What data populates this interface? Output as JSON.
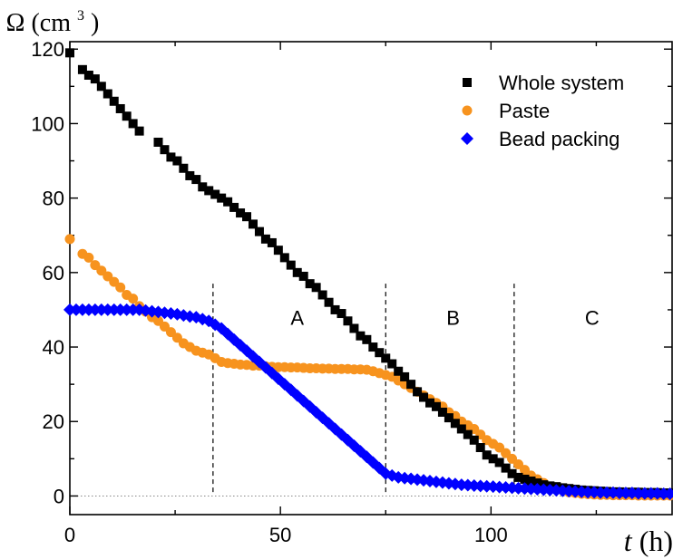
{
  "chart_data": {
    "type": "scatter",
    "title": "",
    "ylabel": {
      "symbol": "Ω",
      "unit": "cm",
      "superscript": "3"
    },
    "xlabel": {
      "symbol": "t",
      "unit": "h"
    },
    "xlim": [
      0,
      143
    ],
    "ylim": [
      -5,
      122
    ],
    "xticks": [
      0,
      50,
      100
    ],
    "yticks": [
      0,
      20,
      40,
      60,
      80,
      100,
      120
    ],
    "grid": false,
    "legend_position": "top-right",
    "zero_line": {
      "y": 0,
      "style": "dotted"
    },
    "region_lines": [
      34,
      75,
      105.5
    ],
    "regions": [
      {
        "label": "A",
        "x": 54
      },
      {
        "label": "B",
        "x": 91
      },
      {
        "label": "C",
        "x": 124
      }
    ],
    "series": [
      {
        "name": "Whole system",
        "marker": "square",
        "color": "#000000",
        "x": [
          0,
          3,
          4.5,
          6,
          7.5,
          9,
          10.5,
          12,
          13.5,
          15,
          16.5,
          21,
          22.5,
          24,
          25.5,
          27,
          28.5,
          30,
          31.5,
          33,
          34.5,
          36,
          37.5,
          39,
          40.5,
          42,
          43.5,
          45,
          46.5,
          48,
          49.5,
          51,
          52.5,
          54,
          55.5,
          57,
          58.5,
          60,
          61.5,
          63,
          64.5,
          66,
          67.5,
          69,
          70.5,
          72,
          73.5,
          75,
          76.5,
          78,
          79.5,
          81,
          82.5,
          84,
          85.5,
          87,
          88.5,
          90,
          91.5,
          93,
          94.5,
          96,
          97.5,
          99,
          100.5,
          102,
          103.5,
          105,
          106.5,
          108,
          109.5,
          111,
          112.5,
          114,
          115.5,
          117,
          118.5,
          120,
          121.5,
          123,
          124.5,
          126,
          127.5,
          129,
          130.5,
          132,
          133.5,
          135,
          136.5,
          138,
          139.5,
          141,
          142.5
        ],
        "values": [
          119,
          114.5,
          113,
          112,
          110,
          108,
          106,
          104,
          102,
          100,
          98,
          95,
          93,
          91,
          90,
          88,
          86,
          85,
          83,
          82,
          81,
          80,
          79,
          77.5,
          76,
          75,
          73,
          71,
          69,
          68,
          66,
          64,
          62,
          60,
          59,
          57,
          56,
          54,
          52,
          50,
          49,
          47,
          45,
          43,
          42,
          40,
          38.5,
          37,
          35.5,
          33.5,
          32,
          30,
          28,
          26.5,
          25,
          24,
          22.5,
          21,
          19.5,
          18,
          16.5,
          15,
          13,
          11,
          10,
          9,
          7.5,
          6,
          5,
          4.5,
          4,
          3.5,
          3,
          2.7,
          2.5,
          2.2,
          2,
          1.8,
          1.6,
          1.5,
          1.4,
          1.3,
          1.2,
          1.1,
          1.1,
          1,
          1,
          1,
          0.9,
          0.9,
          0.9,
          0.8,
          0.8
        ]
      },
      {
        "name": "Paste",
        "marker": "circle",
        "color": "#F7931E",
        "x": [
          0,
          3,
          4.5,
          6,
          7.5,
          9,
          10.5,
          12,
          13.5,
          15,
          16.5,
          18,
          19.5,
          21,
          22.5,
          24,
          25.5,
          27,
          28.5,
          30,
          31.5,
          33,
          34.5,
          36,
          37.5,
          39,
          40.5,
          42,
          43.5,
          45,
          46.5,
          48,
          49.5,
          51,
          52.5,
          54,
          55.5,
          57,
          58.5,
          60,
          61.5,
          63,
          64.5,
          66,
          67.5,
          69,
          70.5,
          72,
          73.5,
          75,
          76.5,
          78,
          79.5,
          81,
          82.5,
          84,
          85.5,
          87,
          88.5,
          90,
          91.5,
          93,
          94.5,
          96,
          97.5,
          99,
          100.5,
          102,
          103.5,
          105,
          106.5,
          108,
          109.5,
          111,
          112.5,
          114,
          115.5,
          117,
          118.5,
          120,
          121.5,
          123,
          124.5,
          126,
          127.5,
          129,
          130.5,
          132,
          133.5,
          135,
          136.5,
          138,
          139.5,
          141,
          142.5
        ],
        "values": [
          69,
          65,
          64,
          62,
          60.5,
          59,
          57.5,
          56,
          54,
          53,
          51,
          49.5,
          48,
          47,
          45.5,
          44,
          42.5,
          41,
          40,
          39,
          38.5,
          38,
          37,
          36,
          35.7,
          35.5,
          35.3,
          35.2,
          35,
          35,
          34.8,
          34.7,
          34.6,
          34.6,
          34.5,
          34.5,
          34.4,
          34.3,
          34.3,
          34.2,
          34.2,
          34.1,
          34.1,
          34.1,
          34,
          34,
          33.9,
          33.5,
          33,
          32.5,
          32,
          31,
          30,
          29,
          28,
          27,
          26,
          25,
          24,
          22.5,
          21.5,
          20,
          19,
          18,
          16.5,
          15,
          14,
          13,
          11.5,
          10,
          8.5,
          7,
          5.5,
          4.5,
          3.5,
          2.5,
          2,
          1.5,
          1,
          0.8,
          0.6,
          0.5,
          0.4,
          0.3,
          0.3,
          0.2,
          0.2,
          0.2,
          0.2,
          0.1,
          0.1,
          0.1,
          0.1,
          0.1,
          0.1
        ]
      },
      {
        "name": "Bead packing",
        "marker": "diamond",
        "color": "#0000FF",
        "x": [
          0,
          1.5,
          3,
          4.5,
          6,
          7.5,
          9,
          10.5,
          12,
          13.5,
          15,
          16.5,
          18,
          19.5,
          21,
          22.5,
          24,
          25.5,
          27,
          28.5,
          30,
          31.5,
          33,
          34.5,
          36,
          37.5,
          39,
          40.5,
          42,
          43.5,
          45,
          46.5,
          48,
          49.5,
          51,
          52.5,
          54,
          55.5,
          57,
          58.5,
          60,
          61.5,
          63,
          64.5,
          66,
          67.5,
          69,
          70.5,
          72,
          73.5,
          75,
          76.5,
          78,
          79.5,
          81,
          82.5,
          84,
          85.5,
          87,
          88.5,
          90,
          91.5,
          93,
          94.5,
          96,
          97.5,
          99,
          100.5,
          102,
          103.5,
          105,
          106.5,
          108,
          109.5,
          111,
          112.5,
          114,
          115.5,
          117,
          118.5,
          120,
          121.5,
          123,
          124.5,
          126,
          127.5,
          129,
          130.5,
          132,
          133.5,
          135,
          136.5,
          138,
          139.5,
          141,
          142.5
        ],
        "values": [
          50,
          50,
          50,
          50,
          50,
          50,
          50,
          50,
          50,
          50,
          50,
          50,
          49.8,
          49.6,
          49.4,
          49.2,
          49,
          48.8,
          48.5,
          48.2,
          48,
          47.5,
          47,
          46,
          45,
          43.5,
          42,
          40.5,
          39,
          37.5,
          36,
          34.5,
          33,
          31.5,
          30,
          28.5,
          27,
          25.5,
          24,
          22.5,
          21,
          19.5,
          18,
          16.5,
          15,
          13.5,
          12,
          10.5,
          9,
          7.5,
          6,
          5.5,
          5,
          4.8,
          4.6,
          4.4,
          4.2,
          4,
          3.8,
          3.6,
          3.4,
          3.2,
          3,
          2.9,
          2.8,
          2.7,
          2.6,
          2.5,
          2.4,
          2.3,
          2.2,
          2.1,
          2,
          1.9,
          1.8,
          1.7,
          1.6,
          1.5,
          1.4,
          1.3,
          1.2,
          1.1,
          1,
          1,
          0.9,
          0.9,
          0.9,
          0.8,
          0.8,
          0.8,
          0.7,
          0.7,
          0.7,
          0.7,
          0.6,
          0.6
        ]
      }
    ]
  }
}
